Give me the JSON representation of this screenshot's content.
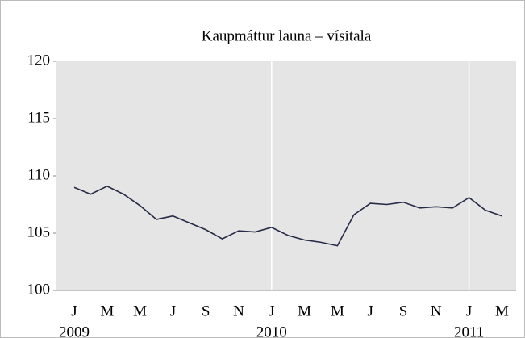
{
  "chart_data": {
    "type": "line",
    "title": "Kaupmáttur launa – vísitala",
    "categories": [
      "J",
      null,
      "M",
      null,
      "M",
      null,
      "J",
      null,
      "S",
      null,
      "N",
      null,
      "J",
      null,
      "M",
      null,
      "M",
      null,
      "J",
      null,
      "S",
      null,
      "N",
      null,
      "J",
      null,
      "M"
    ],
    "year_labels": [
      "2009",
      null,
      null,
      null,
      null,
      null,
      null,
      null,
      null,
      null,
      null,
      null,
      "2010",
      null,
      null,
      null,
      null,
      null,
      null,
      null,
      null,
      null,
      null,
      null,
      "2011",
      null,
      null
    ],
    "series": [
      {
        "name": "Kaupmáttur launa",
        "color": "#262a45",
        "values": [
          109.0,
          108.4,
          109.1,
          108.4,
          107.4,
          106.2,
          106.5,
          105.9,
          105.3,
          104.5,
          105.2,
          105.1,
          105.5,
          104.8,
          104.4,
          104.2,
          103.9,
          106.6,
          107.6,
          107.5,
          107.7,
          107.2,
          107.3,
          107.2,
          108.1,
          107.0,
          106.5
        ]
      }
    ],
    "ylim": [
      100,
      120
    ],
    "yticks": [
      100,
      105,
      110,
      115,
      120
    ],
    "grid": false
  }
}
